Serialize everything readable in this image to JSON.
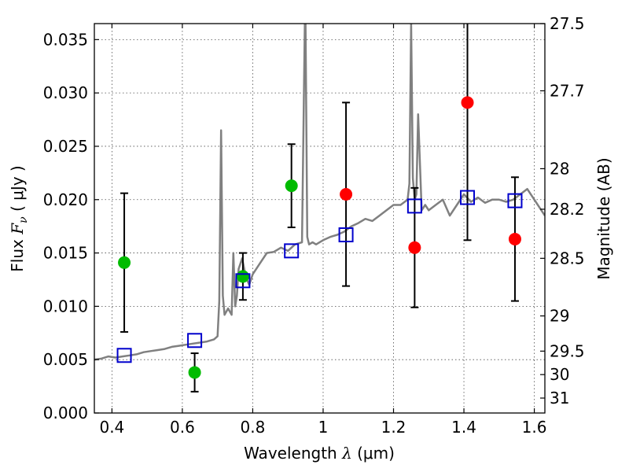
{
  "chart_data": {
    "type": "scatter",
    "title": "",
    "xlabel_prefix": "Wavelength  ",
    "xlabel_symbol": "λ",
    "xlabel_unit": " (μm)",
    "ylabel_prefix": "Flux  ",
    "ylabel_symbol": "F",
    "ylabel_sub": "ν",
    "ylabel_unit": "  ( μJy )",
    "y2label": "Magnitude (AB)",
    "xlim": [
      0.35,
      1.63
    ],
    "ylim": [
      0.0,
      0.0365
    ],
    "grid": true,
    "x_ticks": [
      {
        "value": 0.4,
        "label": "0.4"
      },
      {
        "value": 0.6,
        "label": "0.6"
      },
      {
        "value": 0.8,
        "label": "0.8"
      },
      {
        "value": 1.0,
        "label": "1"
      },
      {
        "value": 1.2,
        "label": "1.2"
      },
      {
        "value": 1.4,
        "label": "1.4"
      },
      {
        "value": 1.6,
        "label": "1.6"
      }
    ],
    "y_ticks": [
      {
        "value": 0.0,
        "label": "0.000"
      },
      {
        "value": 0.005,
        "label": "0.005"
      },
      {
        "value": 0.01,
        "label": "0.010"
      },
      {
        "value": 0.015,
        "label": "0.015"
      },
      {
        "value": 0.02,
        "label": "0.020"
      },
      {
        "value": 0.025,
        "label": "0.025"
      },
      {
        "value": 0.03,
        "label": "0.030"
      },
      {
        "value": 0.035,
        "label": "0.035"
      }
    ],
    "y2_ticks": [
      {
        "flux": 0.0365,
        "label": "27.5"
      },
      {
        "flux": 0.0302,
        "label": "27.7"
      },
      {
        "flux": 0.0229,
        "label": "28"
      },
      {
        "flux": 0.0191,
        "label": "28.2"
      },
      {
        "flux": 0.0145,
        "label": "28.5"
      },
      {
        "flux": 0.0091,
        "label": "29"
      },
      {
        "flux": 0.0058,
        "label": "29.5"
      },
      {
        "flux": 0.0036,
        "label": "30"
      },
      {
        "flux": 0.0014,
        "label": "31"
      }
    ],
    "series": [
      {
        "kind": "line",
        "color": "#808080",
        "x": [
          0.35,
          0.37,
          0.39,
          0.41,
          0.43,
          0.45,
          0.47,
          0.49,
          0.51,
          0.53,
          0.55,
          0.57,
          0.59,
          0.61,
          0.63,
          0.65,
          0.67,
          0.69,
          0.7,
          0.705,
          0.71,
          0.715,
          0.72,
          0.73,
          0.74,
          0.745,
          0.75,
          0.755,
          0.76,
          0.77,
          0.78,
          0.79,
          0.8,
          0.82,
          0.84,
          0.86,
          0.88,
          0.9,
          0.92,
          0.94,
          0.948,
          0.95,
          0.955,
          0.96,
          0.97,
          0.98,
          1.0,
          1.02,
          1.04,
          1.06,
          1.08,
          1.1,
          1.12,
          1.14,
          1.16,
          1.18,
          1.2,
          1.22,
          1.24,
          1.245,
          1.25,
          1.255,
          1.26,
          1.265,
          1.27,
          1.28,
          1.29,
          1.3,
          1.32,
          1.34,
          1.36,
          1.38,
          1.4,
          1.42,
          1.44,
          1.46,
          1.48,
          1.5,
          1.52,
          1.54,
          1.56,
          1.58,
          1.6,
          1.62,
          1.63
        ],
        "y": [
          0.005,
          0.0051,
          0.0053,
          0.0052,
          0.0053,
          0.0054,
          0.0055,
          0.0057,
          0.0058,
          0.0059,
          0.006,
          0.0062,
          0.0063,
          0.0064,
          0.0065,
          0.0066,
          0.0067,
          0.0069,
          0.0072,
          0.0105,
          0.0265,
          0.011,
          0.0092,
          0.0098,
          0.0092,
          0.015,
          0.01,
          0.011,
          0.0135,
          0.0145,
          0.0128,
          0.012,
          0.013,
          0.014,
          0.015,
          0.0151,
          0.0155,
          0.0152,
          0.0158,
          0.016,
          0.0365,
          0.0365,
          0.0165,
          0.0158,
          0.016,
          0.0158,
          0.0162,
          0.0165,
          0.0167,
          0.017,
          0.0175,
          0.0178,
          0.0182,
          0.018,
          0.0185,
          0.019,
          0.0195,
          0.0195,
          0.02,
          0.0215,
          0.0365,
          0.022,
          0.02,
          0.0205,
          0.028,
          0.019,
          0.0195,
          0.019,
          0.0195,
          0.02,
          0.0185,
          0.0195,
          0.0205,
          0.0198,
          0.0202,
          0.0197,
          0.02,
          0.02,
          0.0198,
          0.02,
          0.0205,
          0.021,
          0.02,
          0.019,
          0.0185
        ]
      },
      {
        "kind": "points",
        "marker": "circle",
        "color": "#00bb00",
        "x": [
          0.435,
          0.635,
          0.772,
          0.91
        ],
        "y": [
          0.0141,
          0.0038,
          0.0128,
          0.0213
        ],
        "err": [
          0.0065,
          0.0018,
          0.0022,
          0.0039
        ]
      },
      {
        "kind": "points",
        "marker": "circle",
        "color": "#ff0000",
        "x": [
          1.065,
          1.26,
          1.41,
          1.545
        ],
        "y": [
          0.0205,
          0.0155,
          0.0291,
          0.0163
        ],
        "err": [
          0.0086,
          0.0056,
          0.0129,
          0.0058
        ]
      },
      {
        "kind": "points",
        "marker": "square",
        "color": "#0000cc",
        "x": [
          0.435,
          0.635,
          0.772,
          0.91,
          1.065,
          1.26,
          1.41,
          1.545
        ],
        "y": [
          0.0054,
          0.0068,
          0.0124,
          0.0152,
          0.0167,
          0.0194,
          0.0202,
          0.0199
        ]
      }
    ]
  }
}
